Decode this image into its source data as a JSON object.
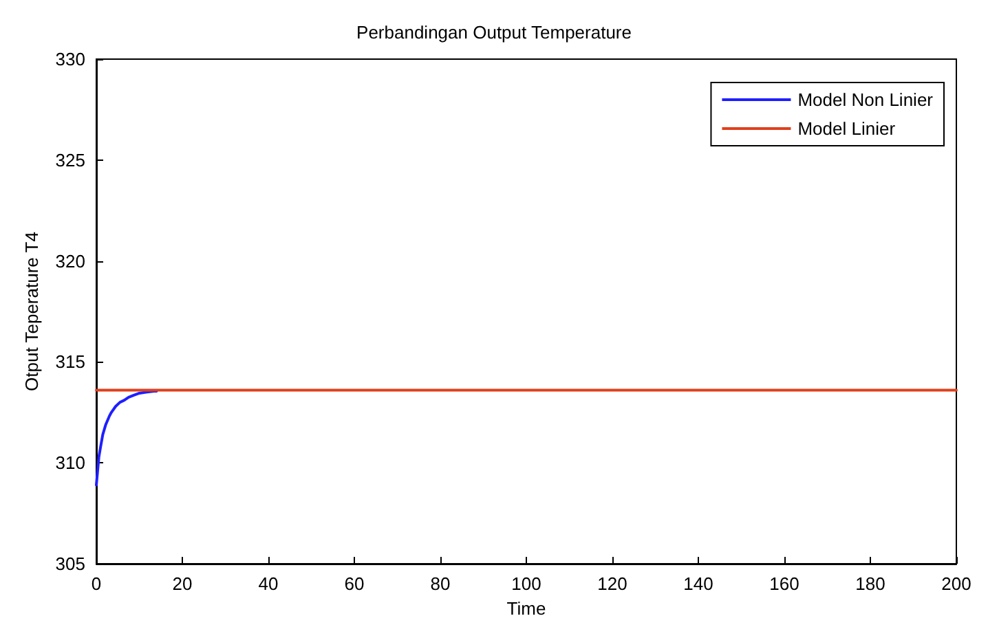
{
  "chart_data": {
    "type": "line",
    "title": "Perbandingan Output Temperature",
    "xlabel": "Time",
    "ylabel": "Otput Teperature T4",
    "xlim": [
      0,
      200
    ],
    "xticks": [
      0,
      20,
      40,
      60,
      80,
      100,
      120,
      140,
      160,
      180,
      200
    ],
    "ylim": [
      305,
      330
    ],
    "yticks": [
      305,
      310,
      315,
      320,
      325,
      330
    ],
    "grid": false,
    "legend": "top right",
    "marker": "none",
    "line_style": "solid",
    "series": [
      {
        "name": "Model Non Linier",
        "color": "#1f1fff",
        "x": [
          0,
          0.3,
          0.6,
          1,
          1.5,
          2.2,
          3,
          3.5,
          4.5,
          5.5,
          6.5,
          7.5,
          8.7,
          10,
          11.5,
          13.4,
          14
        ],
        "values": [
          308.9,
          309.6,
          310.3,
          310.8,
          311.4,
          311.9,
          312.3,
          312.5,
          312.8,
          313.0,
          313.1,
          313.25,
          313.35,
          313.45,
          313.5,
          313.55,
          313.55
        ]
      },
      {
        "name": "Model Linier",
        "color": "#e0401c",
        "x": [
          0,
          200
        ],
        "values": [
          313.6,
          313.6
        ]
      }
    ]
  }
}
